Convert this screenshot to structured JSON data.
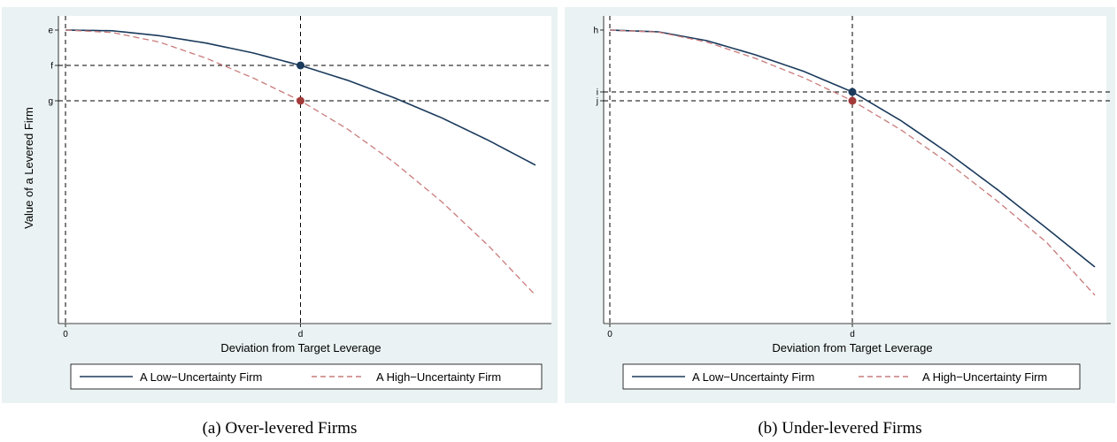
{
  "chart_data": [
    {
      "type": "line",
      "caption": "(a) Over-levered Firms",
      "xlabel": "Deviation from Target Leverage",
      "ylabel": "Value of a Levered Firm",
      "x_ticks": [
        {
          "value": 0,
          "label": "0"
        },
        {
          "value": 0.5,
          "label": "d"
        }
      ],
      "y_ticks": [
        {
          "value": 1.0,
          "label": "e"
        },
        {
          "value": 0.9,
          "label": "f"
        },
        {
          "value": 0.8,
          "label": "g"
        }
      ],
      "xlim": [
        0,
        1
      ],
      "ylim": [
        0.17,
        1.0
      ],
      "reference_lines": {
        "vertical": [
          0,
          0.5
        ],
        "horizontal": [
          0.9,
          0.8
        ]
      },
      "series": [
        {
          "name": "A Low−Uncertainty Firm",
          "style": "solid",
          "color": "#1b3a5c",
          "x": [
            0.0,
            0.1,
            0.2,
            0.3,
            0.4,
            0.5,
            0.6,
            0.7,
            0.8,
            0.9,
            1.0
          ],
          "y": [
            1.0,
            0.998,
            0.984,
            0.963,
            0.935,
            0.9,
            0.858,
            0.808,
            0.752,
            0.688,
            0.618
          ]
        },
        {
          "name": "A High−Uncertainty Firm",
          "style": "dashed",
          "color": "#c97b7b",
          "x": [
            0.0,
            0.1,
            0.2,
            0.3,
            0.4,
            0.5,
            0.6,
            0.7,
            0.8,
            0.9,
            1.0
          ],
          "y": [
            1.0,
            0.993,
            0.966,
            0.92,
            0.864,
            0.8,
            0.72,
            0.625,
            0.515,
            0.39,
            0.25
          ]
        }
      ],
      "points": [
        {
          "series": "A Low−Uncertainty Firm",
          "x": 0.5,
          "y": 0.9,
          "color": "#1b3a5c"
        },
        {
          "series": "A High−Uncertainty Firm",
          "x": 0.5,
          "y": 0.8,
          "color": "#a33a3a"
        }
      ],
      "legend": "bottom"
    },
    {
      "type": "line",
      "caption": "(b) Under-levered Firms",
      "xlabel": "Deviation from Target Leverage",
      "ylabel": "",
      "x_ticks": [
        {
          "value": 0,
          "label": "0"
        },
        {
          "value": 0.5,
          "label": "d"
        }
      ],
      "y_ticks": [
        {
          "value": 1.0,
          "label": "h"
        },
        {
          "value": 0.825,
          "label": "i"
        },
        {
          "value": 0.8,
          "label": "j"
        }
      ],
      "xlim": [
        0,
        1
      ],
      "ylim": [
        0.17,
        1.0
      ],
      "reference_lines": {
        "vertical": [
          0,
          0.5
        ],
        "horizontal": [
          0.825,
          0.8
        ]
      },
      "series": [
        {
          "name": "A Low−Uncertainty Firm",
          "style": "solid",
          "color": "#1b3a5c",
          "x": [
            0.0,
            0.1,
            0.2,
            0.3,
            0.4,
            0.5,
            0.6,
            0.7,
            0.8,
            0.9,
            1.0
          ],
          "y": [
            1.0,
            0.995,
            0.97,
            0.93,
            0.883,
            0.825,
            0.744,
            0.65,
            0.548,
            0.44,
            0.33
          ]
        },
        {
          "name": "A High−Uncertainty Firm",
          "style": "dashed",
          "color": "#c97b7b",
          "x": [
            0.0,
            0.1,
            0.2,
            0.3,
            0.4,
            0.5,
            0.6,
            0.7,
            0.8,
            0.9,
            1.0
          ],
          "y": [
            1.0,
            0.994,
            0.966,
            0.92,
            0.865,
            0.8,
            0.718,
            0.622,
            0.515,
            0.4,
            0.25
          ]
        }
      ],
      "points": [
        {
          "series": "A Low−Uncertainty Firm",
          "x": 0.5,
          "y": 0.825,
          "color": "#1b3a5c"
        },
        {
          "series": "A High−Uncertainty Firm",
          "x": 0.5,
          "y": 0.8,
          "color": "#a33a3a"
        }
      ],
      "legend": "bottom"
    }
  ]
}
